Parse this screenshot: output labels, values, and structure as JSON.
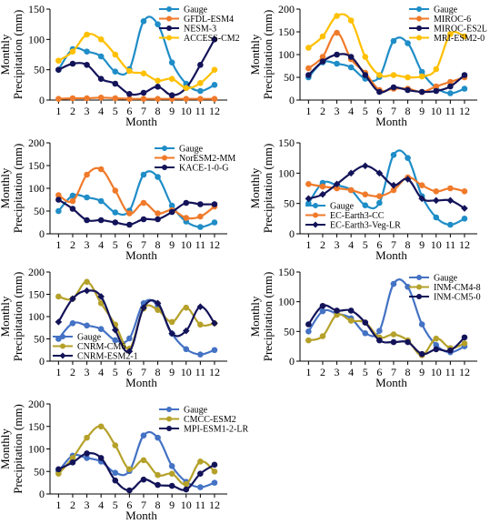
{
  "x_label": "Month",
  "y_label_line1": "Monthly",
  "y_label_line2": "Precipitation (mm)",
  "chart_data": [
    {
      "type": "line",
      "x": [
        1,
        2,
        3,
        4,
        5,
        6,
        7,
        8,
        9,
        10,
        11,
        12
      ],
      "ylim": [
        0,
        150
      ],
      "yticks": [
        0,
        50,
        100,
        150
      ],
      "legend_position": "top-right",
      "series": [
        {
          "name": "Gauge",
          "color": "#1f8dc7",
          "marker": "circle",
          "values": [
            50,
            84,
            80,
            72,
            47,
            51,
            130,
            125,
            62,
            27,
            15,
            25
          ]
        },
        {
          "name": "GFDL-ESM4",
          "color": "#f07a2a",
          "marker": "circle",
          "values": [
            2,
            3,
            3,
            4,
            3,
            2,
            2,
            2,
            2,
            2,
            2,
            2
          ]
        },
        {
          "name": "NESM-3",
          "color": "#131359",
          "marker": "circle",
          "values": [
            50,
            60,
            58,
            35,
            27,
            10,
            12,
            22,
            8,
            20,
            58,
            100
          ]
        },
        {
          "name": "ACCESS-CM2",
          "color": "#ffc000",
          "marker": "circle",
          "values": [
            65,
            80,
            108,
            100,
            75,
            48,
            44,
            32,
            35,
            20,
            28,
            50
          ]
        }
      ]
    },
    {
      "type": "line",
      "x": [
        1,
        2,
        3,
        4,
        5,
        6,
        7,
        8,
        9,
        10,
        11,
        12
      ],
      "ylim": [
        0,
        200
      ],
      "yticks": [
        0,
        50,
        100,
        150,
        200
      ],
      "legend_position": "top-right",
      "series": [
        {
          "name": "Gauge",
          "color": "#1f8dc7",
          "marker": "circle",
          "values": [
            50,
            83,
            80,
            72,
            47,
            51,
            130,
            125,
            62,
            27,
            15,
            25
          ]
        },
        {
          "name": "MIROC-6",
          "color": "#f07a2a",
          "marker": "circle",
          "values": [
            70,
            95,
            148,
            90,
            60,
            22,
            25,
            25,
            18,
            30,
            40,
            50
          ]
        },
        {
          "name": "MIROC-ES2L",
          "color": "#131359",
          "marker": "circle",
          "values": [
            55,
            85,
            100,
            95,
            55,
            18,
            28,
            22,
            18,
            20,
            30,
            55
          ]
        },
        {
          "name": "MRI-ESM2-0",
          "color": "#ffc000",
          "marker": "circle",
          "values": [
            115,
            140,
            185,
            175,
            95,
            55,
            55,
            50,
            52,
            68,
            145,
            140
          ]
        }
      ]
    },
    {
      "type": "line",
      "x": [
        1,
        2,
        3,
        4,
        5,
        6,
        7,
        8,
        9,
        10,
        11,
        12
      ],
      "ylim": [
        0,
        200
      ],
      "yticks": [
        0,
        50,
        100,
        150,
        200
      ],
      "legend_position": "top-right",
      "series": [
        {
          "name": "Gauge",
          "color": "#1f8dc7",
          "marker": "circle",
          "values": [
            50,
            84,
            80,
            72,
            47,
            51,
            130,
            125,
            62,
            27,
            15,
            25
          ]
        },
        {
          "name": "NorESM2-MM",
          "color": "#f07a2a",
          "marker": "circle",
          "values": [
            85,
            72,
            130,
            142,
            95,
            45,
            68,
            45,
            52,
            35,
            38,
            60
          ]
        },
        {
          "name": "KACE-1-0-G",
          "color": "#131359",
          "marker": "circle",
          "values": [
            75,
            55,
            30,
            30,
            25,
            20,
            32,
            32,
            48,
            68,
            65,
            65
          ]
        }
      ]
    },
    {
      "type": "line",
      "x": [
        1,
        2,
        3,
        4,
        5,
        6,
        7,
        8,
        9,
        10,
        11,
        12
      ],
      "ylim": [
        0,
        150
      ],
      "yticks": [
        0,
        50,
        100,
        150
      ],
      "legend_position": "bottom-left",
      "series": [
        {
          "name": "Gauge",
          "color": "#1f8dc7",
          "marker": "circle",
          "values": [
            50,
            84,
            80,
            72,
            47,
            51,
            130,
            125,
            62,
            27,
            15,
            25
          ]
        },
        {
          "name": "EC-Earth3-CC",
          "color": "#f07a2a",
          "marker": "circle",
          "values": [
            82,
            78,
            75,
            72,
            65,
            62,
            72,
            93,
            80,
            70,
            75,
            70
          ]
        },
        {
          "name": "EC-Earth3-Veg-LR",
          "color": "#131359",
          "marker": "diamond",
          "values": [
            58,
            65,
            82,
            100,
            112,
            100,
            80,
            90,
            58,
            55,
            55,
            42
          ]
        }
      ]
    },
    {
      "type": "line",
      "x": [
        1,
        2,
        3,
        4,
        5,
        6,
        7,
        8,
        9,
        10,
        11,
        12
      ],
      "ylim": [
        0,
        200
      ],
      "yticks": [
        0,
        50,
        100,
        150,
        200
      ],
      "legend_position": "bottom-left",
      "series": [
        {
          "name": "Gauge",
          "color": "#4472c4",
          "marker": "circle",
          "values": [
            50,
            85,
            80,
            72,
            47,
            51,
            130,
            125,
            62,
            27,
            15,
            25
          ]
        },
        {
          "name": "CNRM-CM6",
          "color": "#b5a12a",
          "marker": "circle",
          "values": [
            145,
            140,
            178,
            130,
            82,
            28,
            118,
            115,
            88,
            120,
            82,
            85
          ]
        },
        {
          "name": "CNRM-ESM2-1",
          "color": "#131359",
          "marker": "diamond",
          "values": [
            88,
            140,
            158,
            145,
            70,
            22,
            120,
            130,
            62,
            68,
            122,
            85
          ]
        }
      ]
    },
    {
      "type": "line",
      "x": [
        1,
        2,
        3,
        4,
        5,
        6,
        7,
        8,
        9,
        10,
        11,
        12
      ],
      "ylim": [
        0,
        150
      ],
      "yticks": [
        0,
        50,
        100,
        150
      ],
      "legend_position": "top-right",
      "series": [
        {
          "name": "Gauge",
          "color": "#4472c4",
          "marker": "circle",
          "values": [
            50,
            84,
            80,
            72,
            47,
            51,
            130,
            125,
            62,
            27,
            15,
            25
          ]
        },
        {
          "name": "INM-CM4-8",
          "color": "#b5a12a",
          "marker": "circle",
          "values": [
            35,
            42,
            78,
            68,
            65,
            40,
            45,
            35,
            10,
            38,
            22,
            30
          ]
        },
        {
          "name": "INM-CM5-0",
          "color": "#131359",
          "marker": "circle",
          "values": [
            62,
            93,
            85,
            85,
            65,
            35,
            32,
            32,
            12,
            20,
            18,
            40
          ]
        }
      ]
    },
    {
      "type": "line",
      "x": [
        1,
        2,
        3,
        4,
        5,
        6,
        7,
        8,
        9,
        10,
        11,
        12
      ],
      "ylim": [
        0,
        200
      ],
      "yticks": [
        0,
        50,
        100,
        150,
        200
      ],
      "legend_position": "top-right",
      "series": [
        {
          "name": "Gauge",
          "color": "#4472c4",
          "marker": "circle",
          "values": [
            50,
            85,
            80,
            72,
            47,
            51,
            130,
            125,
            62,
            27,
            15,
            25
          ]
        },
        {
          "name": "CMCC-ESM2",
          "color": "#b5a12a",
          "marker": "circle",
          "values": [
            45,
            80,
            125,
            150,
            108,
            55,
            75,
            42,
            45,
            22,
            72,
            50
          ]
        },
        {
          "name": "MPI-ESM1-2-LR",
          "color": "#131359",
          "marker": "circle",
          "values": [
            55,
            70,
            90,
            80,
            30,
            8,
            32,
            20,
            18,
            10,
            45,
            65
          ]
        }
      ]
    }
  ]
}
